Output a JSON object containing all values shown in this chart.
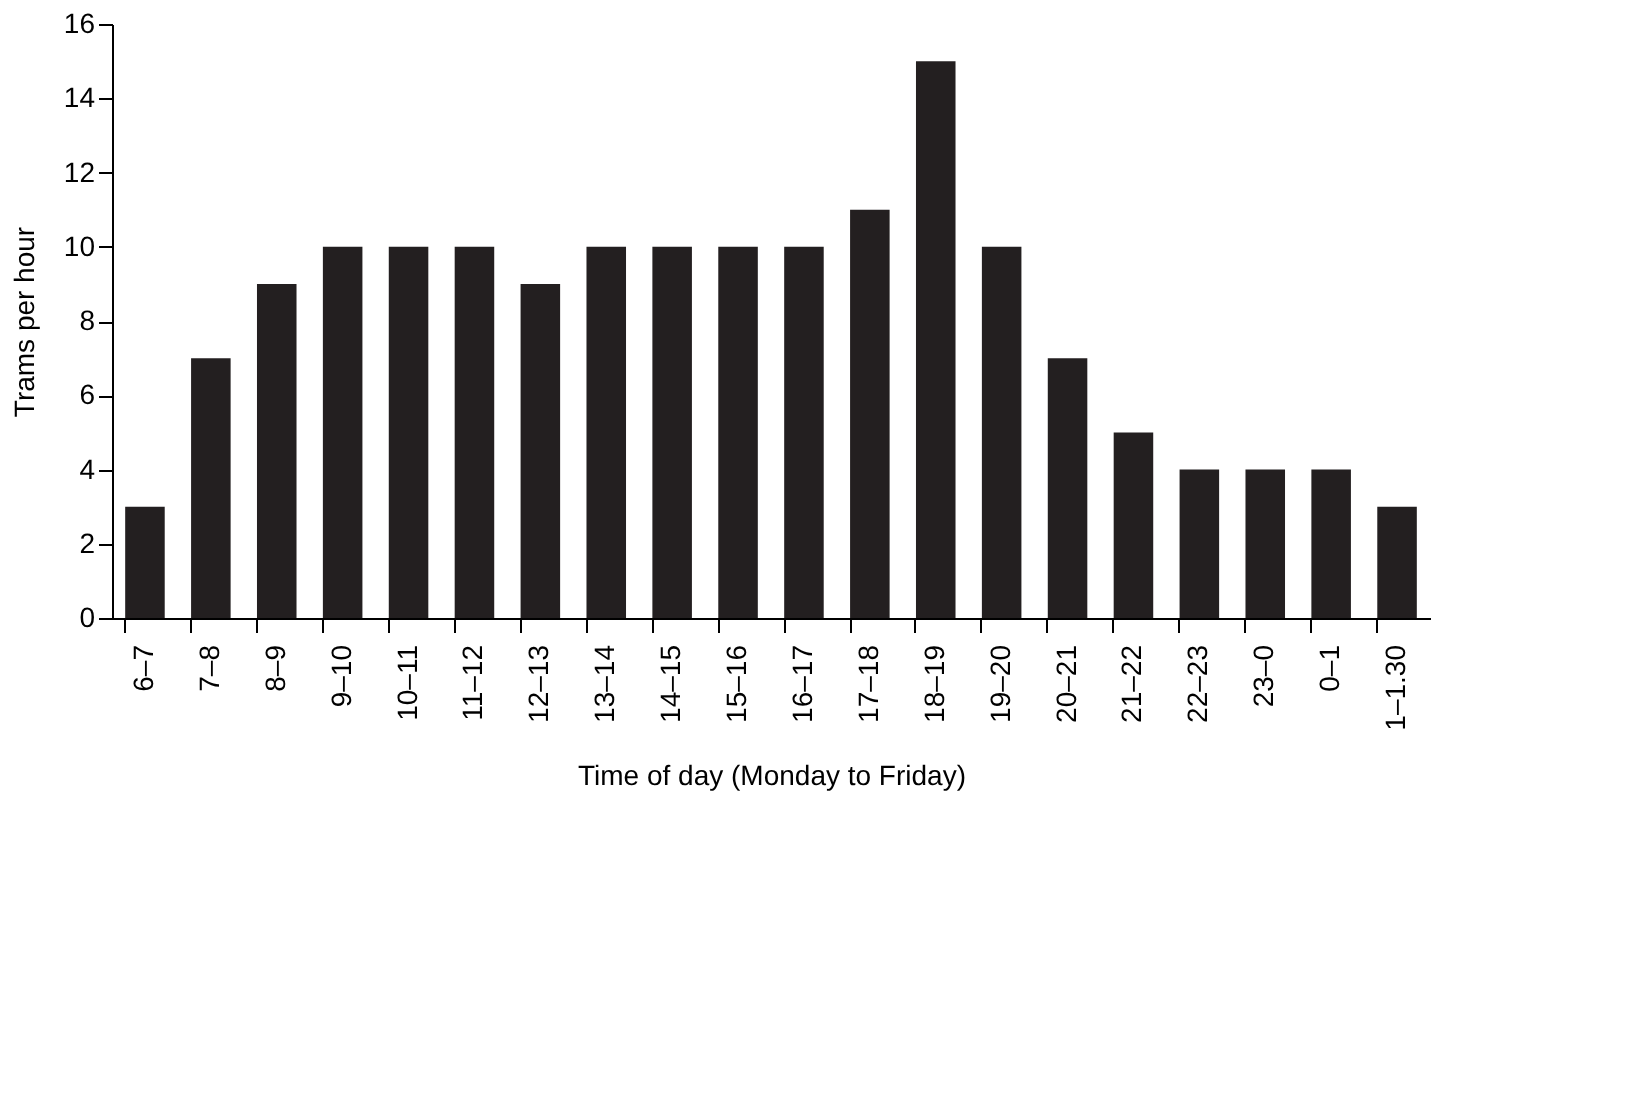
{
  "chart_data": {
    "type": "bar",
    "xlabel": "Time of day (Monday to Friday)",
    "ylabel": "Trams per hour",
    "categories": [
      "6–7",
      "7–8",
      "8–9",
      "9–10",
      "10–11",
      "11–12",
      "12–13",
      "13–14",
      "14–15",
      "15–16",
      "16–17",
      "17–18",
      "18–19",
      "19–20",
      "20–21",
      "21–22",
      "22–23",
      "23–0",
      "0–1",
      "1–1.30"
    ],
    "values": [
      3,
      7,
      9,
      10,
      10,
      10,
      9,
      10,
      10,
      10,
      10,
      11,
      15,
      10,
      7,
      5,
      4,
      4,
      4,
      3
    ],
    "color": "#231f20",
    "ylim": [
      0,
      16
    ],
    "yticks": [
      0,
      2,
      4,
      6,
      8,
      10,
      12,
      14,
      16
    ],
    "grid": false
  }
}
